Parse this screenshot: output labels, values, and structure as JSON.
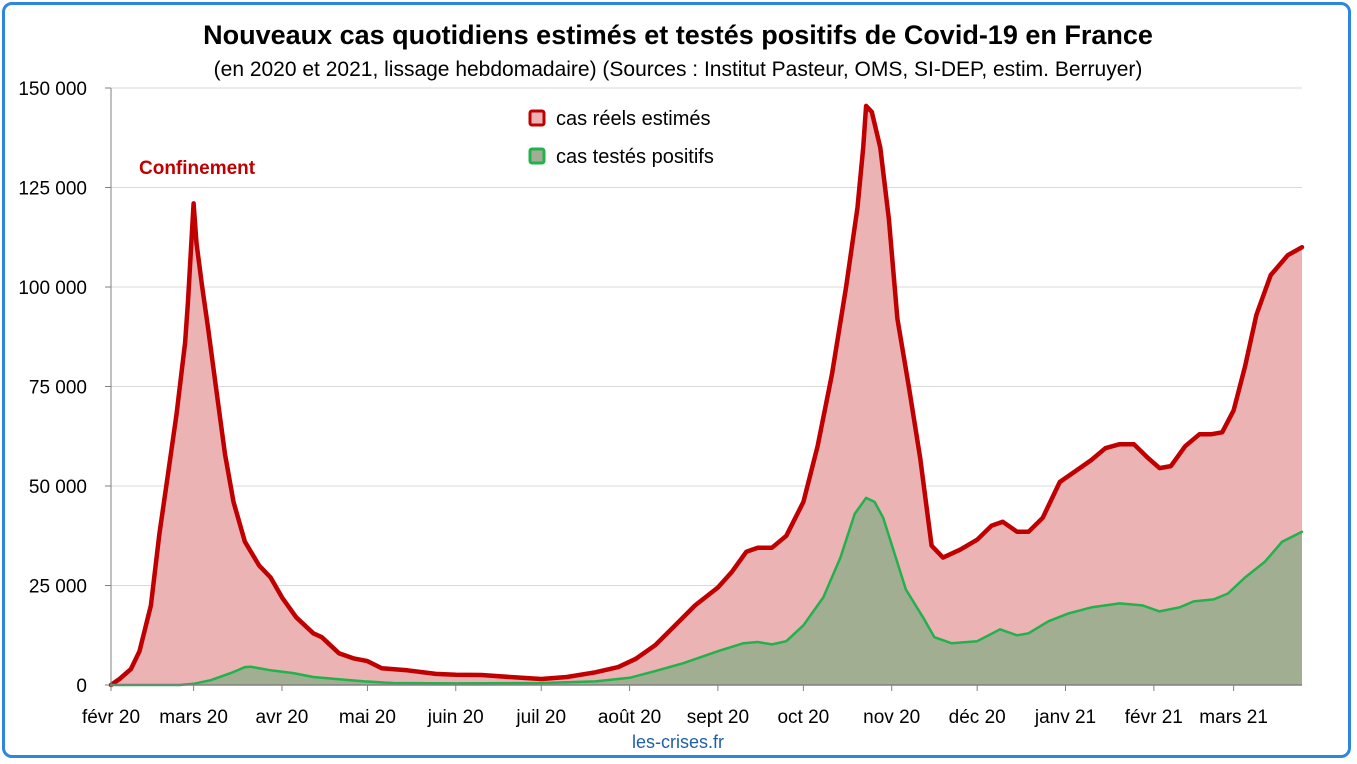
{
  "chart_data": {
    "type": "area",
    "title": "Nouveaux cas quotidiens estimés et testés positifs de Covid-19 en France",
    "subtitle": "(en 2020 et 2021, lissage hebdomadaire) (Sources : Institut Pasteur, OMS, SI-DEP, estim. Berruyer)",
    "ylim": [
      0,
      150000
    ],
    "yticks": [
      {
        "value": 0,
        "label": "0"
      },
      {
        "value": 25000,
        "label": "25 000"
      },
      {
        "value": 50000,
        "label": "50 000"
      },
      {
        "value": 75000,
        "label": "75 000"
      },
      {
        "value": 100000,
        "label": "100 000"
      },
      {
        "value": 125000,
        "label": "125 000"
      },
      {
        "value": 150000,
        "label": "150 000"
      }
    ],
    "xlim": [
      "2020-02-01",
      "2021-03-25"
    ],
    "xticks": [
      {
        "date": "2020-02-01",
        "label": "févr 20"
      },
      {
        "date": "2020-03-01",
        "label": "mars 20"
      },
      {
        "date": "2020-04-01",
        "label": "avr 20"
      },
      {
        "date": "2020-05-01",
        "label": "mai 20"
      },
      {
        "date": "2020-06-01",
        "label": "juin 20"
      },
      {
        "date": "2020-07-01",
        "label": "juil 20"
      },
      {
        "date": "2020-08-01",
        "label": "août 20"
      },
      {
        "date": "2020-09-01",
        "label": "sept 20"
      },
      {
        "date": "2020-10-01",
        "label": "oct 20"
      },
      {
        "date": "2020-11-01",
        "label": "nov 20"
      },
      {
        "date": "2020-12-01",
        "label": "déc 20"
      },
      {
        "date": "2021-01-01",
        "label": "janv 21"
      },
      {
        "date": "2021-02-01",
        "label": "févr 21"
      },
      {
        "date": "2021-03-01",
        "label": "mars 21"
      }
    ],
    "grid": true,
    "legend_position": "top-center",
    "series": [
      {
        "name": "cas réels estimés",
        "line_color": "#c00000",
        "fill_color": "#ebb3b3",
        "points": [
          [
            "2020-02-01",
            0
          ],
          [
            "2020-02-04",
            1500
          ],
          [
            "2020-02-08",
            4000
          ],
          [
            "2020-02-11",
            8500
          ],
          [
            "2020-02-15",
            20000
          ],
          [
            "2020-02-18",
            38000
          ],
          [
            "2020-02-21",
            53000
          ],
          [
            "2020-02-24",
            68000
          ],
          [
            "2020-02-27",
            86000
          ],
          [
            "2020-02-28",
            96000
          ],
          [
            "2020-03-01",
            121000
          ],
          [
            "2020-03-02",
            111000
          ],
          [
            "2020-03-04",
            100000
          ],
          [
            "2020-03-06",
            90000
          ],
          [
            "2020-03-09",
            74000
          ],
          [
            "2020-03-12",
            58000
          ],
          [
            "2020-03-15",
            46000
          ],
          [
            "2020-03-19",
            36000
          ],
          [
            "2020-03-24",
            30000
          ],
          [
            "2020-03-28",
            27000
          ],
          [
            "2020-04-01",
            22000
          ],
          [
            "2020-04-06",
            17000
          ],
          [
            "2020-04-12",
            13000
          ],
          [
            "2020-04-15",
            12000
          ],
          [
            "2020-04-21",
            8000
          ],
          [
            "2020-04-26",
            6700
          ],
          [
            "2020-05-01",
            6000
          ],
          [
            "2020-05-06",
            4200
          ],
          [
            "2020-05-15",
            3700
          ],
          [
            "2020-05-25",
            2800
          ],
          [
            "2020-06-01",
            2600
          ],
          [
            "2020-06-10",
            2500
          ],
          [
            "2020-06-20",
            2000
          ],
          [
            "2020-07-01",
            1500
          ],
          [
            "2020-07-10",
            2000
          ],
          [
            "2020-07-20",
            3200
          ],
          [
            "2020-07-28",
            4500
          ],
          [
            "2020-08-03",
            6500
          ],
          [
            "2020-08-10",
            10000
          ],
          [
            "2020-08-17",
            15000
          ],
          [
            "2020-08-24",
            20000
          ],
          [
            "2020-09-01",
            24500
          ],
          [
            "2020-09-06",
            28500
          ],
          [
            "2020-09-11",
            33500
          ],
          [
            "2020-09-15",
            34500
          ],
          [
            "2020-09-20",
            34500
          ],
          [
            "2020-09-25",
            37500
          ],
          [
            "2020-10-01",
            46000
          ],
          [
            "2020-10-06",
            60000
          ],
          [
            "2020-10-11",
            78000
          ],
          [
            "2020-10-16",
            100000
          ],
          [
            "2020-10-20",
            120000
          ],
          [
            "2020-10-22",
            135000
          ],
          [
            "2020-10-23",
            145500
          ],
          [
            "2020-10-25",
            144000
          ],
          [
            "2020-10-28",
            135000
          ],
          [
            "2020-10-31",
            117000
          ],
          [
            "2020-11-03",
            92000
          ],
          [
            "2020-11-07",
            75000
          ],
          [
            "2020-11-11",
            57000
          ],
          [
            "2020-11-15",
            35000
          ],
          [
            "2020-11-19",
            32000
          ],
          [
            "2020-11-25",
            34000
          ],
          [
            "2020-12-01",
            36500
          ],
          [
            "2020-12-06",
            40000
          ],
          [
            "2020-12-10",
            41000
          ],
          [
            "2020-12-15",
            38500
          ],
          [
            "2020-12-19",
            38500
          ],
          [
            "2020-12-24",
            42000
          ],
          [
            "2020-12-30",
            51000
          ],
          [
            "2021-01-05",
            54000
          ],
          [
            "2021-01-10",
            56500
          ],
          [
            "2021-01-15",
            59500
          ],
          [
            "2021-01-20",
            60500
          ],
          [
            "2021-01-25",
            60500
          ],
          [
            "2021-01-30",
            57000
          ],
          [
            "2021-02-03",
            54500
          ],
          [
            "2021-02-07",
            55000
          ],
          [
            "2021-02-12",
            60000
          ],
          [
            "2021-02-17",
            63000
          ],
          [
            "2021-02-21",
            63000
          ],
          [
            "2021-02-25",
            63500
          ],
          [
            "2021-03-01",
            69000
          ],
          [
            "2021-03-05",
            80000
          ],
          [
            "2021-03-09",
            93000
          ],
          [
            "2021-03-14",
            103000
          ],
          [
            "2021-03-20",
            108000
          ],
          [
            "2021-03-25",
            110000
          ]
        ]
      },
      {
        "name": "cas testés positifs",
        "line_color": "#22b14c",
        "fill_color": "#a1ae91",
        "points": [
          [
            "2020-02-01",
            0
          ],
          [
            "2020-02-25",
            0
          ],
          [
            "2020-03-01",
            300
          ],
          [
            "2020-03-07",
            1200
          ],
          [
            "2020-03-14",
            3000
          ],
          [
            "2020-03-19",
            4500
          ],
          [
            "2020-03-21",
            4600
          ],
          [
            "2020-03-28",
            3700
          ],
          [
            "2020-04-05",
            3000
          ],
          [
            "2020-04-12",
            2000
          ],
          [
            "2020-04-20",
            1500
          ],
          [
            "2020-04-30",
            900
          ],
          [
            "2020-05-10",
            500
          ],
          [
            "2020-06-01",
            400
          ],
          [
            "2020-07-01",
            500
          ],
          [
            "2020-07-20",
            900
          ],
          [
            "2020-08-01",
            1800
          ],
          [
            "2020-08-10",
            3500
          ],
          [
            "2020-08-20",
            5500
          ],
          [
            "2020-09-01",
            8500
          ],
          [
            "2020-09-10",
            10500
          ],
          [
            "2020-09-15",
            10800
          ],
          [
            "2020-09-20",
            10200
          ],
          [
            "2020-09-25",
            11000
          ],
          [
            "2020-10-01",
            15000
          ],
          [
            "2020-10-08",
            22000
          ],
          [
            "2020-10-14",
            32000
          ],
          [
            "2020-10-19",
            43000
          ],
          [
            "2020-10-23",
            47000
          ],
          [
            "2020-10-26",
            46000
          ],
          [
            "2020-10-29",
            42000
          ],
          [
            "2020-11-02",
            33000
          ],
          [
            "2020-11-06",
            24000
          ],
          [
            "2020-11-12",
            17000
          ],
          [
            "2020-11-16",
            12000
          ],
          [
            "2020-11-22",
            10500
          ],
          [
            "2020-12-01",
            11000
          ],
          [
            "2020-12-05",
            12500
          ],
          [
            "2020-12-09",
            14000
          ],
          [
            "2020-12-15",
            12500
          ],
          [
            "2020-12-19",
            13000
          ],
          [
            "2020-12-26",
            16000
          ],
          [
            "2021-01-02",
            18000
          ],
          [
            "2021-01-10",
            19500
          ],
          [
            "2021-01-20",
            20500
          ],
          [
            "2021-01-28",
            20000
          ],
          [
            "2021-02-03",
            18500
          ],
          [
            "2021-02-10",
            19500
          ],
          [
            "2021-02-15",
            21000
          ],
          [
            "2021-02-22",
            21500
          ],
          [
            "2021-02-27",
            23000
          ],
          [
            "2021-03-05",
            27000
          ],
          [
            "2021-03-12",
            31000
          ],
          [
            "2021-03-18",
            36000
          ],
          [
            "2021-03-25",
            38500
          ]
        ]
      }
    ],
    "annotations": [
      {
        "text": "Confinement",
        "color": "#c00000"
      }
    ],
    "source": "les-crises.fr"
  }
}
